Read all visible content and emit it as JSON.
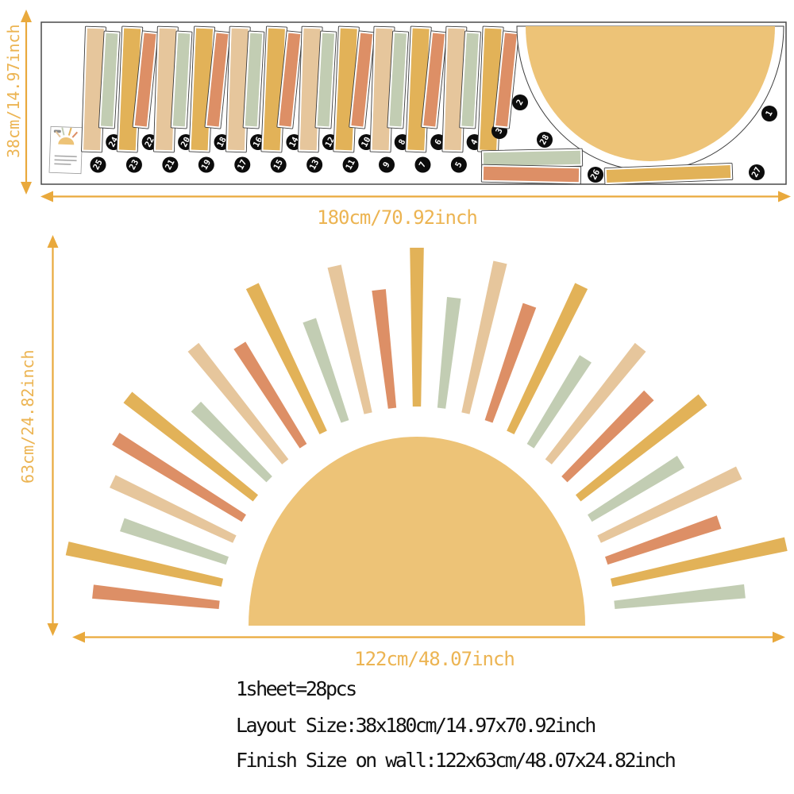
{
  "product": {
    "info_lines": [
      "1sheet=28pcs",
      "Layout Size:38x180cm/14.97x70.92inch",
      "Finish Size on wall:122x63cm/48.07x24.82inch"
    ]
  },
  "dimensions": {
    "sheet_height": "38cm/14.97inch",
    "sheet_width": "180cm/70.92inch",
    "wall_height": "63cm/24.82inch",
    "wall_width": "122cm/48.07inch"
  },
  "colors": {
    "yellow": "#E2B258",
    "tan": "#E6C69C",
    "sage": "#C2CDB3",
    "orange": "#DD8F66",
    "sun": "#EDC377",
    "gold": "#E9A93C",
    "gold_text": "#ECB452",
    "ink": "#111111",
    "outline": "#3C3C3C",
    "badge": "#0C0C0C"
  },
  "sheet": {
    "pieces_total": 28,
    "sun_piece": {
      "num": 1
    },
    "bars": [
      {
        "num": 25,
        "color": "tan",
        "size": "tall"
      },
      {
        "num": 24,
        "color": "sage",
        "size": "short"
      },
      {
        "num": 23,
        "color": "yellow",
        "size": "tall"
      },
      {
        "num": 22,
        "color": "orange",
        "size": "short"
      },
      {
        "num": 21,
        "color": "tan",
        "size": "tall"
      },
      {
        "num": 20,
        "color": "sage",
        "size": "short"
      },
      {
        "num": 19,
        "color": "yellow",
        "size": "tall"
      },
      {
        "num": 18,
        "color": "orange",
        "size": "short"
      },
      {
        "num": 17,
        "color": "tan",
        "size": "tall"
      },
      {
        "num": 16,
        "color": "sage",
        "size": "short"
      },
      {
        "num": 15,
        "color": "yellow",
        "size": "tall"
      },
      {
        "num": 14,
        "color": "orange",
        "size": "short"
      },
      {
        "num": 13,
        "color": "tan",
        "size": "tall"
      },
      {
        "num": 12,
        "color": "sage",
        "size": "short"
      },
      {
        "num": 11,
        "color": "yellow",
        "size": "tall"
      },
      {
        "num": 10,
        "color": "orange",
        "size": "short"
      },
      {
        "num": 9,
        "color": "tan",
        "size": "tall"
      },
      {
        "num": 8,
        "color": "sage",
        "size": "short"
      },
      {
        "num": 7,
        "color": "yellow",
        "size": "tall"
      },
      {
        "num": 6,
        "color": "orange",
        "size": "short"
      },
      {
        "num": 5,
        "color": "tan",
        "size": "tall"
      },
      {
        "num": 4,
        "color": "sage",
        "size": "short"
      },
      {
        "num": 3,
        "color": "yellow",
        "size": "tall"
      },
      {
        "num": 2,
        "color": "orange",
        "size": "short"
      }
    ],
    "strips": [
      {
        "num": 28,
        "color": "sage"
      },
      {
        "num": 26,
        "color": "orange"
      },
      {
        "num": 27,
        "color": "yellow"
      }
    ]
  },
  "sun_design": {
    "rays": [
      {
        "c": "orange",
        "len": 160
      },
      {
        "c": "yellow",
        "len": 200
      },
      {
        "c": "sage",
        "len": 140
      },
      {
        "c": "tan",
        "len": 170
      },
      {
        "c": "orange",
        "len": 190
      },
      {
        "c": "yellow",
        "len": 205
      },
      {
        "c": "sage",
        "len": 130
      },
      {
        "c": "tan",
        "len": 185
      },
      {
        "c": "orange",
        "len": 150
      },
      {
        "c": "yellow",
        "len": 205
      },
      {
        "c": "sage",
        "len": 135
      },
      {
        "c": "tan",
        "len": 190
      },
      {
        "c": "orange",
        "len": 150
      },
      {
        "c": "yellow",
        "len": 200
      },
      {
        "c": "sage",
        "len": 140
      },
      {
        "c": "tan",
        "len": 195
      },
      {
        "c": "orange",
        "len": 155
      },
      {
        "c": "yellow",
        "len": 205
      },
      {
        "c": "sage",
        "len": 130
      },
      {
        "c": "tan",
        "len": 185
      },
      {
        "c": "orange",
        "len": 150
      },
      {
        "c": "yellow",
        "len": 200
      },
      {
        "c": "sage",
        "len": 135
      },
      {
        "c": "tan",
        "len": 195
      },
      {
        "c": "orange",
        "len": 150
      },
      {
        "c": "yellow",
        "len": 225
      },
      {
        "c": "sage",
        "len": 165
      }
    ]
  }
}
